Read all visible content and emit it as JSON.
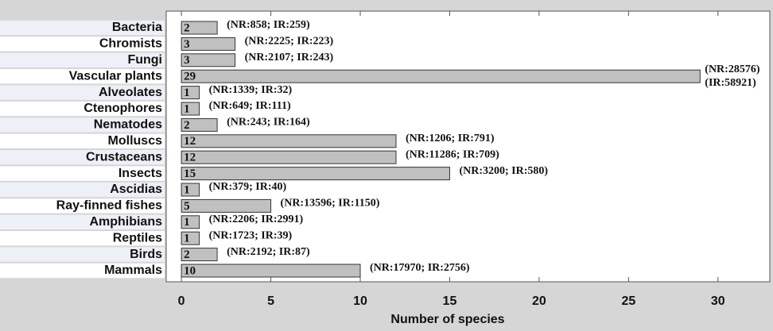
{
  "chart_data": {
    "type": "hbar",
    "xlabel": "Number of species",
    "categories": [
      "Bacteria",
      "Chromists",
      "Fungi",
      "Vascular plants",
      "Alveolates",
      "Ctenophores",
      "Nematodes",
      "Molluscs",
      "Crustaceans",
      "Insects",
      "Ascidias",
      "Ray-finned fishes",
      "Amphibians",
      "Reptiles",
      "Birds",
      "Mammals"
    ],
    "values": [
      2,
      3,
      3,
      29,
      1,
      1,
      2,
      12,
      12,
      15,
      1,
      5,
      1,
      1,
      2,
      10
    ],
    "annotations": [
      [
        "(NR:858; IR:259)"
      ],
      [
        "(NR:2225; IR:223)"
      ],
      [
        "(NR:2107; IR:243)"
      ],
      [
        "(NR:28576)",
        "(IR:58921)"
      ],
      [
        "(NR:1339; IR:32)"
      ],
      [
        "(NR:649; IR:111)"
      ],
      [
        "(NR:243; IR:164)"
      ],
      [
        "(NR:1206; IR:791)"
      ],
      [
        "(NR:11286; IR:709)"
      ],
      [
        "(NR:3200; IR:580)"
      ],
      [
        "(NR:379; IR:40)"
      ],
      [
        "(NR:13596; IR:1150)"
      ],
      [
        "(NR:2206; IR:2991)"
      ],
      [
        "(NR:1723; IR:39)"
      ],
      [
        "(NR:2192; IR:87)"
      ],
      [
        "(NR:17970; IR:2756)"
      ]
    ],
    "color": "#c0c0c0",
    "xlim": [
      -0.85,
      32.9
    ],
    "xticks": [
      0,
      5,
      10,
      15,
      20,
      25,
      30
    ],
    "grid": false
  }
}
